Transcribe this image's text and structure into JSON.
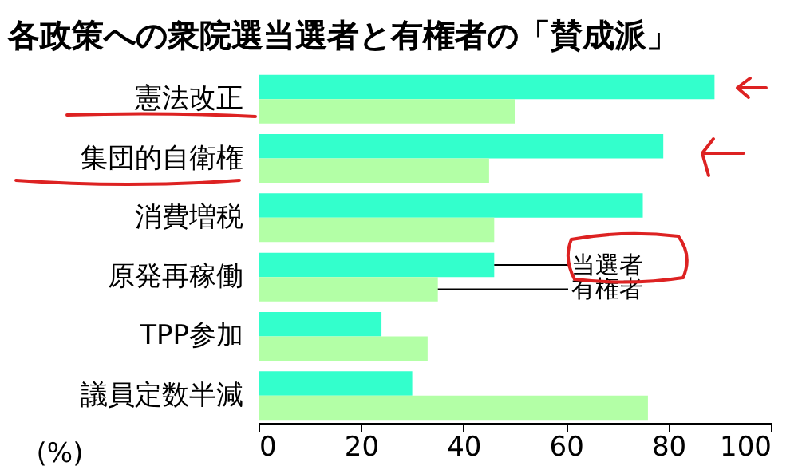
{
  "chart_data": {
    "type": "bar",
    "orientation": "horizontal",
    "title": "各政策への衆院選当選者と有権者の「賛成派」",
    "xlabel": "(%)",
    "categories": [
      "憲法改正",
      "集団的自衛権",
      "消費増税",
      "原発再稼働",
      "TPP参加",
      "議員定数半減"
    ],
    "series": [
      {
        "name": "当選者",
        "color": "#33ffcc",
        "values": [
          89,
          79,
          75,
          46,
          24,
          30
        ]
      },
      {
        "name": "有権者",
        "color": "#b3ffa6",
        "values": [
          50,
          45,
          46,
          35,
          33,
          76
        ]
      }
    ],
    "xlim": [
      0,
      100
    ],
    "xticks": [
      0,
      20,
      40,
      60,
      80,
      100
    ],
    "grid": false,
    "legend": "right"
  }
}
